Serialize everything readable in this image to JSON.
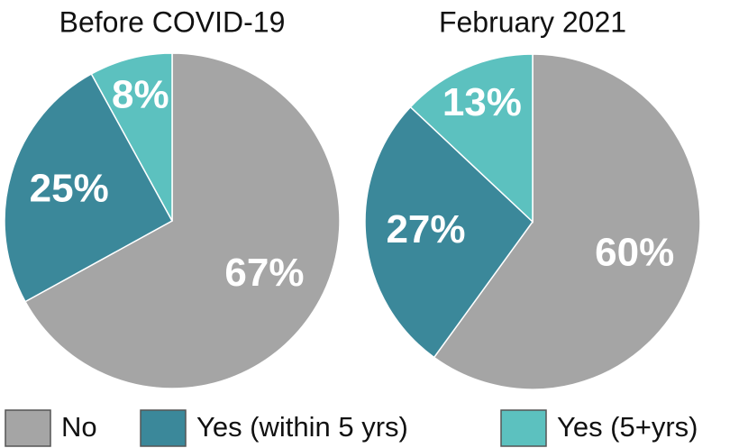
{
  "chart_data": {
    "type": "pie",
    "categories": [
      "No",
      "Yes (within 5 yrs)",
      "Yes (5+yrs)"
    ],
    "colors": [
      "#a5a5a5",
      "#3b889a",
      "#5cc1bf"
    ],
    "series": [
      {
        "name": "Before COVID-19",
        "values": [
          67,
          25,
          8
        ],
        "value_labels": [
          "67%",
          "25%",
          "8%"
        ]
      },
      {
        "name": "February 2021",
        "values": [
          60,
          27,
          13
        ],
        "value_labels": [
          "60%",
          "27%",
          "13%"
        ]
      }
    ]
  }
}
